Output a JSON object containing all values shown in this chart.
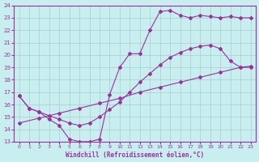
{
  "xlabel": "Windchill (Refroidissement éolien,°C)",
  "bg_color": "#c8eef0",
  "line_color": "#993399",
  "grid_color": "#aacccc",
  "xlim": [
    -0.5,
    23.5
  ],
  "ylim": [
    13,
    24
  ],
  "xticks": [
    0,
    1,
    2,
    3,
    4,
    5,
    6,
    7,
    8,
    9,
    10,
    11,
    12,
    13,
    14,
    15,
    16,
    17,
    18,
    19,
    20,
    21,
    22,
    23
  ],
  "yticks": [
    13,
    14,
    15,
    16,
    17,
    18,
    19,
    20,
    21,
    22,
    23,
    24
  ],
  "line1_x": [
    0,
    1,
    2,
    3,
    4,
    5,
    6,
    7,
    8,
    9,
    10,
    11,
    12,
    13,
    14,
    15,
    16,
    17,
    18,
    19,
    20,
    21,
    22,
    23
  ],
  "line1_y": [
    16.7,
    15.7,
    15.4,
    15.1,
    14.8,
    14.5,
    14.3,
    14.5,
    15.0,
    15.6,
    16.2,
    17.0,
    17.8,
    18.5,
    19.2,
    19.8,
    20.2,
    20.5,
    20.7,
    20.8,
    20.5,
    19.5,
    19.0,
    19.0
  ],
  "line2_x": [
    0,
    1,
    2,
    3,
    4,
    5,
    6,
    7,
    8,
    9,
    10,
    11,
    12,
    13,
    14,
    15,
    16,
    17,
    18,
    19,
    20,
    21,
    22,
    23
  ],
  "line2_y": [
    16.7,
    15.7,
    15.4,
    14.8,
    14.3,
    13.2,
    13.0,
    13.0,
    13.2,
    16.8,
    19.0,
    20.1,
    20.1,
    22.0,
    23.5,
    23.6,
    23.2,
    23.0,
    23.2,
    23.1,
    23.0,
    23.1,
    23.0,
    23.0
  ],
  "line3_x": [
    0,
    2,
    4,
    6,
    8,
    10,
    12,
    14,
    16,
    18,
    20,
    22,
    23
  ],
  "line3_y": [
    14.5,
    14.9,
    15.3,
    15.7,
    16.1,
    16.5,
    17.0,
    17.4,
    17.8,
    18.2,
    18.6,
    19.0,
    19.1
  ]
}
